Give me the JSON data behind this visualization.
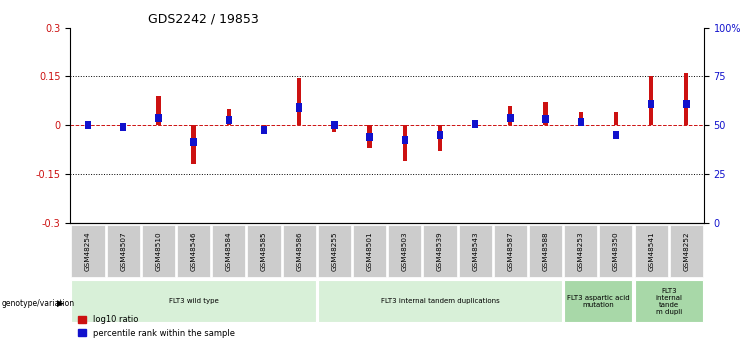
{
  "title": "GDS2242 / 19853",
  "categories": [
    "GSM48254",
    "GSM48507",
    "GSM48510",
    "GSM48546",
    "GSM48584",
    "GSM48585",
    "GSM48586",
    "GSM48255",
    "GSM48501",
    "GSM48503",
    "GSM48539",
    "GSM48543",
    "GSM48587",
    "GSM48588",
    "GSM48253",
    "GSM48350",
    "GSM48541",
    "GSM48252"
  ],
  "log10_ratio": [
    0.01,
    -0.01,
    0.09,
    -0.12,
    0.05,
    -0.02,
    0.145,
    -0.02,
    -0.07,
    -0.11,
    -0.08,
    0.005,
    0.06,
    0.07,
    0.04,
    0.04,
    0.15,
    0.16
  ],
  "percentile_rank_raw": [
    50,
    48,
    57,
    33,
    55,
    45,
    68,
    50,
    38,
    35,
    40,
    51,
    57,
    56,
    53,
    40,
    72,
    72
  ],
  "ylim_left": [
    -0.3,
    0.3
  ],
  "ylim_right": [
    0,
    100
  ],
  "yticks_left": [
    -0.3,
    -0.15,
    0.0,
    0.15,
    0.3
  ],
  "yticks_right": [
    0,
    25,
    50,
    75,
    100
  ],
  "ytick_labels_right": [
    "0",
    "25",
    "50",
    "75",
    "100%"
  ],
  "hlines": [
    0.15,
    -0.15
  ],
  "bar_color_red": "#cc1111",
  "bar_color_blue": "#1111cc",
  "zero_line_color": "#cc1111",
  "group_labels": [
    "FLT3 wild type",
    "FLT3 internal tandem duplications",
    "FLT3 aspartic acid\nmutation",
    "FLT3\ninternal\ntande\nm dupli"
  ],
  "group_ranges": [
    [
      0,
      6
    ],
    [
      7,
      13
    ],
    [
      14,
      15
    ],
    [
      16,
      17
    ]
  ],
  "group_colors": [
    "#d8f0d8",
    "#d8f0d8",
    "#a8d8a8",
    "#a8d8a8"
  ],
  "genotype_label": "genotype/variation",
  "legend_red": "log10 ratio",
  "legend_blue": "percentile rank within the sample",
  "bg_color": "#ffffff",
  "tick_label_bg": "#cccccc"
}
